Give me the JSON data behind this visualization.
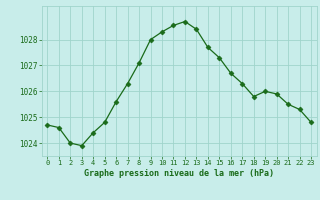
{
  "x": [
    0,
    1,
    2,
    3,
    4,
    5,
    6,
    7,
    8,
    9,
    10,
    11,
    12,
    13,
    14,
    15,
    16,
    17,
    18,
    19,
    20,
    21,
    22,
    23
  ],
  "y": [
    1024.7,
    1024.6,
    1024.0,
    1023.9,
    1024.4,
    1024.8,
    1025.6,
    1026.3,
    1027.1,
    1028.0,
    1028.3,
    1028.55,
    1028.7,
    1028.4,
    1027.7,
    1027.3,
    1026.7,
    1026.3,
    1025.8,
    1026.0,
    1025.9,
    1025.5,
    1025.3,
    1024.8
  ],
  "line_color": "#1a6b1a",
  "marker": "D",
  "marker_size": 2.5,
  "bg_color": "#c8edea",
  "grid_color": "#a0d4cc",
  "xlabel": "Graphe pression niveau de la mer (hPa)",
  "tick_color": "#1a6b1a",
  "ylim": [
    1023.5,
    1029.3
  ],
  "yticks": [
    1024,
    1025,
    1026,
    1027,
    1028
  ],
  "xlim": [
    -0.5,
    23.5
  ]
}
